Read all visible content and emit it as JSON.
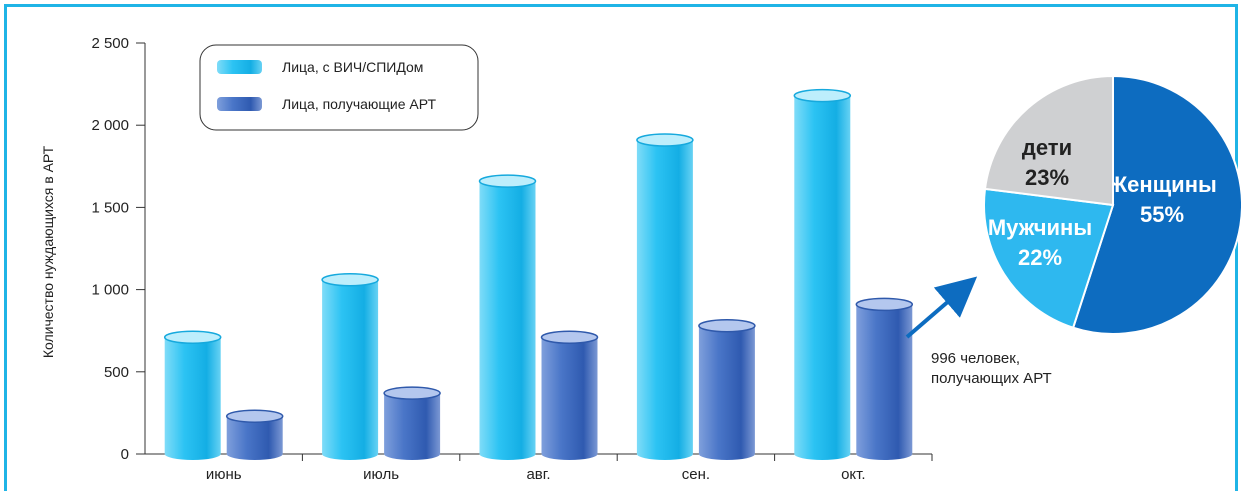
{
  "chart_data": [
    {
      "type": "bar",
      "ylabel": "Количество нуждающихся в АРТ",
      "ylim": [
        0,
        2500
      ],
      "yticks": [
        "0",
        "500",
        "1 000",
        "1 500",
        "2 000",
        "2 500"
      ],
      "categories": [
        "июнь",
        "июль",
        "авг.",
        "сен.",
        "окт."
      ],
      "series": [
        {
          "name": "Лица, с ВИЧ/СПИДом",
          "values": [
            710,
            1060,
            1660,
            1910,
            2180
          ],
          "color": "#29c4f2"
        },
        {
          "name": "Лица, получающие АРТ",
          "values": [
            230,
            370,
            710,
            780,
            910
          ],
          "color": "#3f6fc4"
        }
      ],
      "grid": false,
      "legend": "top-left",
      "annotation": "996 человек,\nполучающих АРТ"
    },
    {
      "type": "pie",
      "slices": [
        {
          "label": "Женщины",
          "value": 55,
          "text": "55%",
          "color": "#0d6cc0",
          "text_color": "#ffffff"
        },
        {
          "label": "Мужчины",
          "value": 22,
          "text": "22%",
          "color": "#2eb8ef",
          "text_color": "#ffffff"
        },
        {
          "label": "дети",
          "value": 23,
          "text": "23%",
          "color": "#cfd0d2",
          "text_color": "#222222"
        }
      ]
    }
  ]
}
